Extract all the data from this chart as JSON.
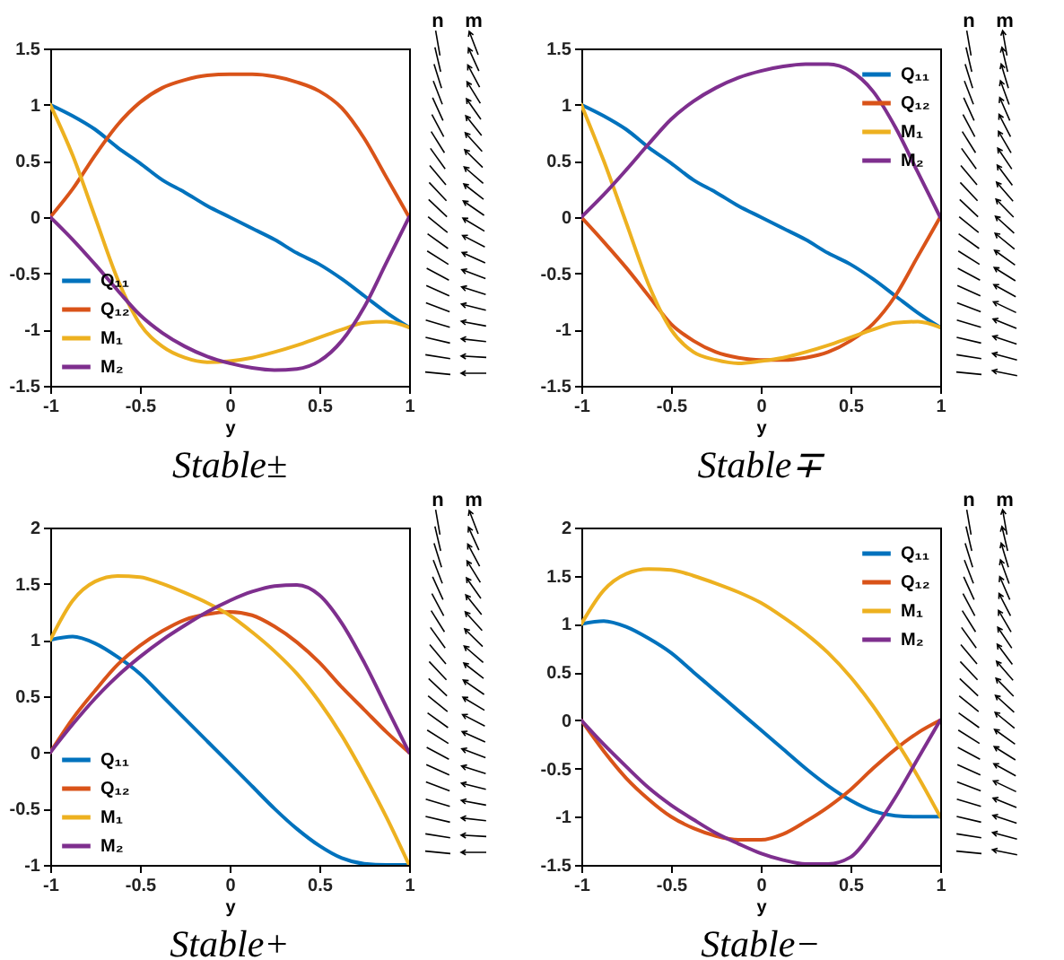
{
  "chart_data": [
    {
      "type": "line",
      "title": "Stable±",
      "xlabel": "y",
      "xlim": [
        -1,
        1
      ],
      "xticks": [
        -1,
        -0.5,
        0,
        0.5,
        1
      ],
      "ylim": [
        -1.5,
        1.5
      ],
      "yticks": [
        -1.5,
        -1,
        -0.5,
        0,
        0.5,
        1,
        1.5
      ],
      "legend": "bottom left",
      "annotations": [
        "n",
        "m"
      ],
      "x": [
        -1,
        -0.875,
        -0.75,
        -0.625,
        -0.5,
        -0.375,
        -0.25,
        -0.125,
        0,
        0.125,
        0.25,
        0.375,
        0.5,
        0.625,
        0.75,
        0.875,
        1
      ],
      "series": [
        {
          "name": "Q₁₁",
          "color": "#0072bd",
          "values": [
            1,
            0.9,
            0.78,
            0.62,
            0.48,
            0.33,
            0.22,
            0.1,
            0,
            -0.1,
            -0.2,
            -0.32,
            -0.42,
            -0.55,
            -0.7,
            -0.85,
            -0.98
          ]
        },
        {
          "name": "Q₁₂",
          "color": "#d95319",
          "values": [
            0,
            0.25,
            0.55,
            0.82,
            1.02,
            1.15,
            1.22,
            1.26,
            1.27,
            1.27,
            1.25,
            1.2,
            1.12,
            0.97,
            0.7,
            0.35,
            0
          ]
        },
        {
          "name": "M₁",
          "color": "#edb120",
          "values": [
            1,
            0.55,
            0,
            -0.55,
            -0.95,
            -1.15,
            -1.25,
            -1.29,
            -1.28,
            -1.25,
            -1.2,
            -1.14,
            -1.07,
            -1,
            -0.94,
            -0.93,
            -0.98
          ]
        },
        {
          "name": "M₂",
          "color": "#7e2f8e",
          "values": [
            0,
            -0.2,
            -0.42,
            -0.65,
            -0.87,
            -1.03,
            -1.15,
            -1.24,
            -1.3,
            -1.34,
            -1.36,
            -1.35,
            -1.28,
            -1.1,
            -0.8,
            -0.4,
            0
          ]
        }
      ]
    },
    {
      "type": "line",
      "title": "Stable∓",
      "xlabel": "y",
      "xlim": [
        -1,
        1
      ],
      "xticks": [
        -1,
        -0.5,
        0,
        0.5,
        1
      ],
      "ylim": [
        -1.5,
        1.5
      ],
      "yticks": [
        -1.5,
        -1,
        -0.5,
        0,
        0.5,
        1,
        1.5
      ],
      "legend": "top right",
      "annotations": [
        "n",
        "m"
      ],
      "x": [
        -1,
        -0.875,
        -0.75,
        -0.625,
        -0.5,
        -0.375,
        -0.25,
        -0.125,
        0,
        0.125,
        0.25,
        0.375,
        0.5,
        0.625,
        0.75,
        0.875,
        1
      ],
      "series": [
        {
          "name": "Q₁₁",
          "color": "#0072bd",
          "values": [
            1,
            0.9,
            0.78,
            0.62,
            0.48,
            0.33,
            0.22,
            0.1,
            0,
            -0.1,
            -0.2,
            -0.32,
            -0.42,
            -0.55,
            -0.7,
            -0.85,
            -0.98
          ]
        },
        {
          "name": "Q₁₂",
          "color": "#d95319",
          "values": [
            0,
            -0.22,
            -0.45,
            -0.7,
            -0.95,
            -1.1,
            -1.2,
            -1.25,
            -1.27,
            -1.27,
            -1.25,
            -1.2,
            -1.1,
            -0.95,
            -0.7,
            -0.35,
            0
          ]
        },
        {
          "name": "M₁",
          "color": "#edb120",
          "values": [
            1,
            0.5,
            -0.05,
            -0.6,
            -1,
            -1.2,
            -1.27,
            -1.3,
            -1.28,
            -1.25,
            -1.2,
            -1.14,
            -1.07,
            -1,
            -0.94,
            -0.93,
            -0.98
          ]
        },
        {
          "name": "M₂",
          "color": "#7e2f8e",
          "values": [
            0,
            0.2,
            0.42,
            0.65,
            0.87,
            1.03,
            1.15,
            1.24,
            1.3,
            1.34,
            1.36,
            1.36,
            1.3,
            1.12,
            0.8,
            0.4,
            0
          ]
        }
      ]
    },
    {
      "type": "line",
      "title": "Stable+",
      "xlabel": "y",
      "xlim": [
        -1,
        1
      ],
      "xticks": [
        -1,
        -0.5,
        0,
        0.5,
        1
      ],
      "ylim": [
        -1,
        2
      ],
      "yticks": [
        -1,
        -0.5,
        0,
        0.5,
        1,
        1.5,
        2
      ],
      "legend": "bottom left",
      "annotations": [
        "n",
        "m"
      ],
      "x": [
        -1,
        -0.875,
        -0.75,
        -0.625,
        -0.5,
        -0.375,
        -0.25,
        -0.125,
        0,
        0.125,
        0.25,
        0.375,
        0.5,
        0.625,
        0.75,
        0.875,
        1
      ],
      "series": [
        {
          "name": "Q₁₁",
          "color": "#0072bd",
          "values": [
            1,
            1.03,
            0.97,
            0.85,
            0.7,
            0.5,
            0.3,
            0.1,
            -0.1,
            -0.3,
            -0.5,
            -0.68,
            -0.83,
            -0.94,
            -0.99,
            -1,
            -1
          ]
        },
        {
          "name": "Q₁₂",
          "color": "#d95319",
          "values": [
            0,
            0.3,
            0.55,
            0.78,
            0.95,
            1.08,
            1.18,
            1.23,
            1.25,
            1.22,
            1.12,
            0.98,
            0.8,
            0.58,
            0.38,
            0.18,
            0
          ]
        },
        {
          "name": "M₁",
          "color": "#edb120",
          "values": [
            1,
            1.35,
            1.52,
            1.57,
            1.56,
            1.5,
            1.42,
            1.33,
            1.22,
            1.07,
            0.9,
            0.7,
            0.45,
            0.15,
            -0.2,
            -0.58,
            -1
          ]
        },
        {
          "name": "M₂",
          "color": "#7e2f8e",
          "values": [
            0,
            0.25,
            0.48,
            0.68,
            0.85,
            1,
            1.13,
            1.25,
            1.35,
            1.43,
            1.48,
            1.49,
            1.4,
            1.15,
            0.8,
            0.4,
            0
          ]
        }
      ]
    },
    {
      "type": "line",
      "title": "Stable−",
      "xlabel": "y",
      "xlim": [
        -1,
        1
      ],
      "xticks": [
        -1,
        -0.5,
        0,
        0.5,
        1
      ],
      "ylim": [
        -1.5,
        2
      ],
      "yticks": [
        -1.5,
        -1,
        -0.5,
        0,
        0.5,
        1,
        1.5,
        2
      ],
      "legend": "top right",
      "annotations": [
        "n",
        "m"
      ],
      "x": [
        -1,
        -0.875,
        -0.75,
        -0.625,
        -0.5,
        -0.375,
        -0.25,
        -0.125,
        0,
        0.125,
        0.25,
        0.375,
        0.5,
        0.625,
        0.75,
        0.875,
        1
      ],
      "series": [
        {
          "name": "Q₁₁",
          "color": "#0072bd",
          "values": [
            1,
            1.03,
            0.97,
            0.85,
            0.7,
            0.5,
            0.3,
            0.1,
            -0.1,
            -0.3,
            -0.5,
            -0.68,
            -0.83,
            -0.94,
            -0.99,
            -1,
            -1
          ]
        },
        {
          "name": "Q₁₂",
          "color": "#d95319",
          "values": [
            0,
            -0.32,
            -0.6,
            -0.82,
            -1,
            -1.12,
            -1.2,
            -1.24,
            -1.24,
            -1.18,
            -1.05,
            -0.9,
            -0.72,
            -0.5,
            -0.3,
            -0.13,
            0
          ]
        },
        {
          "name": "M₁",
          "color": "#edb120",
          "values": [
            1,
            1.35,
            1.52,
            1.57,
            1.56,
            1.5,
            1.42,
            1.33,
            1.22,
            1.07,
            0.9,
            0.7,
            0.45,
            0.15,
            -0.2,
            -0.58,
            -1
          ]
        },
        {
          "name": "M₂",
          "color": "#7e2f8e",
          "values": [
            0,
            -0.25,
            -0.48,
            -0.7,
            -0.88,
            -1.03,
            -1.17,
            -1.28,
            -1.38,
            -1.45,
            -1.49,
            -1.49,
            -1.42,
            -1.15,
            -0.8,
            -0.4,
            0
          ]
        }
      ]
    }
  ]
}
